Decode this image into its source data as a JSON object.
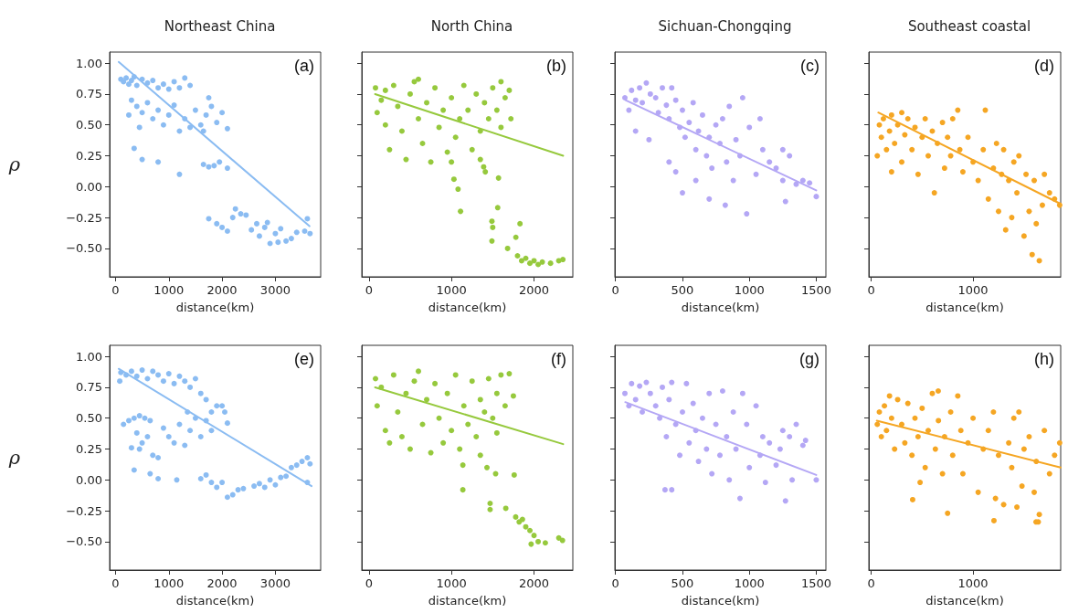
{
  "chart_data": [
    {
      "type": "scatter",
      "title": "Northeast China",
      "xlabel": "distance(km)",
      "ylabel": "ρ",
      "annotations": [
        "(a)"
      ],
      "marker": "circle",
      "xlim": [
        -110,
        3850
      ],
      "xticks": [
        0,
        1000,
        2000,
        3000
      ],
      "ylim": [
        -0.73,
        1.09
      ],
      "yticks": [
        {
          "value": -0.5,
          "label": "−0.50"
        },
        {
          "value": -0.25,
          "label": "−0.25"
        },
        {
          "value": 0,
          "label": "0.00"
        },
        {
          "value": 0.25,
          "label": "0.25"
        },
        {
          "value": 0.5,
          "label": "0.50"
        },
        {
          "value": 0.75,
          "label": "0.75"
        },
        {
          "value": 1,
          "label": "1.00"
        }
      ],
      "series": [
        {
          "color": "#8bbcf2",
          "x": [
            100,
            150,
            200,
            250,
            300,
            350,
            400,
            500,
            600,
            700,
            800,
            900,
            1000,
            1100,
            1200,
            1300,
            1400,
            250,
            300,
            400,
            450,
            500,
            600,
            700,
            800,
            900,
            1000,
            1100,
            1200,
            1300,
            1400,
            1500,
            1600,
            1650,
            1700,
            1800,
            1900,
            2000,
            2100,
            1750,
            350,
            500,
            800,
            1200,
            1650,
            1750,
            1850,
            1950,
            2100,
            1750,
            1900,
            2000,
            2100,
            2200,
            2250,
            2350,
            2450,
            2550,
            2650,
            2700,
            2800,
            2850,
            2900,
            3000,
            3050,
            3100,
            3200,
            3300,
            3400,
            3550,
            3600,
            3650
          ],
          "values": [
            0.87,
            0.85,
            0.88,
            0.83,
            0.86,
            0.89,
            0.82,
            0.87,
            0.84,
            0.86,
            0.8,
            0.83,
            0.79,
            0.85,
            0.8,
            0.88,
            0.82,
            0.58,
            0.7,
            0.65,
            0.48,
            0.6,
            0.68,
            0.55,
            0.62,
            0.5,
            0.58,
            0.66,
            0.45,
            0.55,
            0.48,
            0.62,
            0.5,
            0.45,
            0.58,
            0.65,
            0.52,
            0.6,
            0.47,
            0.72,
            0.31,
            0.22,
            0.2,
            0.1,
            0.18,
            0.16,
            0.17,
            0.2,
            0.15,
            -0.26,
            -0.3,
            -0.33,
            -0.36,
            -0.25,
            -0.18,
            -0.22,
            -0.23,
            -0.35,
            -0.3,
            -0.4,
            -0.33,
            -0.29,
            -0.46,
            -0.38,
            -0.45,
            -0.34,
            -0.44,
            -0.42,
            -0.37,
            -0.36,
            -0.26,
            -0.38
          ]
        },
        {
          "type": "line",
          "marker": "none",
          "color": "#8bbcf2",
          "x": [
            60,
            3640
          ],
          "values": [
            1.01,
            -0.32
          ]
        }
      ]
    },
    {
      "type": "scatter",
      "title": "North China",
      "xlabel": "distance(km)",
      "annotations": [
        "(b)"
      ],
      "marker": "circle",
      "tick_labels": "x",
      "xlim": [
        -86,
        2470
      ],
      "xticks": [
        0,
        1000,
        2000
      ],
      "ylim": [
        -0.73,
        1.09
      ],
      "yticks": [
        -0.5,
        -0.25,
        0,
        0.25,
        0.5,
        0.75,
        1
      ],
      "series": [
        {
          "color": "#96c93d",
          "x": [
            80,
            100,
            150,
            200,
            250,
            300,
            350,
            400,
            450,
            500,
            550,
            600,
            650,
            700,
            750,
            800,
            850,
            900,
            950,
            1000,
            1050,
            1100,
            1150,
            1200,
            1250,
            1300,
            1350,
            1400,
            1450,
            1500,
            1550,
            1600,
            1650,
            1700,
            1720,
            1600,
            1350,
            200,
            600,
            1000,
            1030,
            1080,
            1110,
            1390,
            1410,
            1570,
            1560,
            1490,
            1500,
            1490,
            1680,
            1830,
            1780,
            1800,
            1850,
            1900,
            1950,
            2000,
            2050,
            2100,
            2200,
            2300,
            2350
          ],
          "values": [
            0.8,
            0.6,
            0.7,
            0.5,
            0.3,
            0.82,
            0.65,
            0.45,
            0.22,
            0.75,
            0.85,
            0.55,
            0.35,
            0.68,
            0.2,
            0.8,
            0.48,
            0.62,
            0.28,
            0.72,
            0.4,
            0.55,
            0.82,
            0.62,
            0.3,
            0.75,
            0.45,
            0.68,
            0.55,
            0.8,
            0.62,
            0.85,
            0.72,
            0.78,
            0.55,
            0.48,
            0.22,
            0.78,
            0.87,
            0.2,
            0.06,
            -0.02,
            -0.2,
            0.16,
            0.12,
            0.07,
            -0.17,
            -0.28,
            -0.33,
            -0.44,
            -0.5,
            -0.3,
            -0.41,
            -0.56,
            -0.6,
            -0.58,
            -0.62,
            -0.6,
            -0.63,
            -0.61,
            -0.62,
            -0.6,
            -0.59
          ]
        },
        {
          "type": "line",
          "marker": "none",
          "color": "#96c93d",
          "x": [
            75,
            2353
          ],
          "values": [
            0.75,
            0.25
          ]
        }
      ]
    },
    {
      "type": "scatter",
      "title": "Sichuan-Chongqing",
      "xlabel": "distance(km)",
      "annotations": [
        "(c)"
      ],
      "marker": "circle",
      "tick_labels": "x",
      "xlim": [
        -5,
        1572
      ],
      "xticks": [
        0,
        500,
        1000,
        1500
      ],
      "ylim": [
        -0.73,
        1.09
      ],
      "yticks": [
        -0.5,
        -0.25,
        0,
        0.25,
        0.5,
        0.75,
        1
      ],
      "series": [
        {
          "color": "#b4a7f5",
          "x": [
            70,
            100,
            120,
            150,
            180,
            200,
            230,
            260,
            300,
            320,
            350,
            380,
            400,
            420,
            450,
            480,
            500,
            520,
            550,
            580,
            600,
            620,
            650,
            680,
            700,
            720,
            750,
            780,
            800,
            830,
            850,
            880,
            900,
            930,
            950,
            980,
            1000,
            1050,
            1080,
            1100,
            1150,
            1200,
            1250,
            1270,
            1250,
            1300,
            1350,
            1400,
            1450,
            1500,
            150,
            250,
            400,
            450,
            700,
            820,
            500,
            600
          ],
          "values": [
            0.72,
            0.62,
            0.78,
            0.7,
            0.8,
            0.68,
            0.84,
            0.75,
            0.72,
            0.6,
            0.8,
            0.66,
            0.55,
            0.8,
            0.7,
            0.48,
            0.62,
            0.4,
            0.52,
            0.68,
            0.3,
            0.45,
            0.58,
            0.25,
            0.4,
            0.15,
            0.5,
            0.35,
            0.55,
            0.2,
            0.65,
            0.05,
            0.38,
            0.25,
            0.72,
            -0.22,
            0.48,
            0.1,
            0.55,
            0.3,
            0.2,
            0.15,
            0.05,
            -0.12,
            0.3,
            0.25,
            0.02,
            0.05,
            0.03,
            -0.08,
            0.45,
            0.38,
            0.2,
            0.12,
            -0.1,
            -0.15,
            -0.05,
            0.05
          ]
        },
        {
          "type": "line",
          "marker": "none",
          "color": "#b4a7f5",
          "x": [
            75,
            1500
          ],
          "values": [
            0.7,
            -0.03
          ]
        }
      ]
    },
    {
      "type": "scatter",
      "title": "Southeast coastal",
      "xlabel": "distance(km)",
      "annotations": [
        "(d)"
      ],
      "marker": "circle",
      "tick_labels": "x",
      "xlim": [
        -23,
        1860
      ],
      "xticks": [
        0,
        1000
      ],
      "ylim": [
        -0.73,
        1.09
      ],
      "yticks": [
        -0.5,
        -0.25,
        0,
        0.25,
        0.5,
        0.75,
        1
      ],
      "series": [
        {
          "color": "#f5a623",
          "x": [
            60,
            80,
            100,
            120,
            150,
            180,
            200,
            230,
            260,
            300,
            330,
            360,
            400,
            430,
            460,
            500,
            530,
            560,
            600,
            620,
            650,
            700,
            720,
            750,
            780,
            800,
            850,
            870,
            900,
            950,
            1000,
            1050,
            1100,
            1120,
            1150,
            1200,
            1230,
            1250,
            1280,
            1300,
            1320,
            1350,
            1380,
            1400,
            1430,
            1450,
            1500,
            1520,
            1550,
            1580,
            1600,
            1620,
            1650,
            1680,
            1700,
            1750,
            1800,
            1850,
            300,
            200
          ],
          "values": [
            0.25,
            0.5,
            0.4,
            0.55,
            0.3,
            0.45,
            0.58,
            0.35,
            0.5,
            0.2,
            0.42,
            0.55,
            0.3,
            0.48,
            0.1,
            0.4,
            0.55,
            0.25,
            0.45,
            -0.05,
            0.35,
            0.52,
            0.15,
            0.4,
            0.25,
            0.55,
            0.62,
            0.3,
            0.12,
            0.4,
            0.2,
            0.05,
            0.3,
            0.62,
            -0.1,
            0.15,
            0.35,
            -0.2,
            0.1,
            0.3,
            -0.35,
            0.05,
            -0.25,
            0.2,
            -0.05,
            0.25,
            -0.4,
            0.1,
            -0.2,
            -0.55,
            0.05,
            -0.3,
            -0.6,
            -0.15,
            0.1,
            -0.05,
            -0.1,
            -0.15,
            0.6,
            0.12
          ]
        },
        {
          "type": "line",
          "marker": "none",
          "color": "#f5a623",
          "x": [
            70,
            1860
          ],
          "values": [
            0.6,
            -0.14
          ]
        }
      ]
    },
    {
      "type": "scatter",
      "xlabel": "distance(km)",
      "ylabel": "ρ",
      "annotations": [
        "(e)"
      ],
      "marker": "circle",
      "xlim": [
        -110,
        3850
      ],
      "xticks": [
        0,
        1000,
        2000,
        3000
      ],
      "ylim": [
        -0.73,
        1.09
      ],
      "yticks": [
        {
          "value": -0.5,
          "label": "−0.50"
        },
        {
          "value": -0.25,
          "label": "−0.25"
        },
        {
          "value": 0,
          "label": "0.00"
        },
        {
          "value": 0.25,
          "label": "0.25"
        },
        {
          "value": 0.5,
          "label": "0.50"
        },
        {
          "value": 0.75,
          "label": "0.75"
        },
        {
          "value": 1,
          "label": "1.00"
        }
      ],
      "series": [
        {
          "color": "#8bbcf2",
          "x": [
            80,
            100,
            200,
            300,
            400,
            500,
            600,
            700,
            800,
            900,
            1000,
            1100,
            1200,
            1300,
            1400,
            1500,
            1600,
            1700,
            1800,
            1900,
            2000,
            2050,
            2100,
            150,
            250,
            350,
            450,
            550,
            650,
            400,
            500,
            600,
            700,
            800,
            300,
            450,
            900,
            1000,
            1100,
            1200,
            1300,
            1400,
            1500,
            1600,
            1700,
            1800,
            1350,
            350,
            650,
            800,
            1150,
            1600,
            1700,
            1800,
            1900,
            2000,
            2100,
            2200,
            2300,
            2400,
            2600,
            2700,
            2800,
            2900,
            3000,
            3100,
            3200,
            3300,
            3400,
            3500,
            3600,
            3650,
            3600
          ],
          "values": [
            0.8,
            0.87,
            0.85,
            0.88,
            0.84,
            0.89,
            0.82,
            0.88,
            0.85,
            0.8,
            0.86,
            0.78,
            0.84,
            0.8,
            0.75,
            0.82,
            0.7,
            0.65,
            0.55,
            0.6,
            0.6,
            0.55,
            0.46,
            0.45,
            0.48,
            0.5,
            0.52,
            0.5,
            0.48,
            0.38,
            0.3,
            0.35,
            0.2,
            0.18,
            0.26,
            0.25,
            0.42,
            0.35,
            0.3,
            0.45,
            0.28,
            0.4,
            0.5,
            0.35,
            0.48,
            0.4,
            0.55,
            0.08,
            0.05,
            0.01,
            0.0,
            0.01,
            0.04,
            -0.02,
            -0.06,
            -0.02,
            -0.14,
            -0.12,
            -0.08,
            -0.07,
            -0.05,
            -0.03,
            -0.06,
            0.0,
            -0.04,
            0.02,
            0.03,
            0.1,
            0.12,
            0.15,
            0.18,
            0.13,
            -0.02
          ]
        },
        {
          "type": "line",
          "marker": "none",
          "color": "#8bbcf2",
          "x": [
            60,
            3680
          ],
          "values": [
            0.9,
            -0.05
          ]
        }
      ]
    },
    {
      "type": "scatter",
      "xlabel": "distance(km)",
      "annotations": [
        "(f)"
      ],
      "marker": "circle",
      "tick_labels": "x",
      "xlim": [
        -86,
        2470
      ],
      "xticks": [
        0,
        1000,
        2000
      ],
      "ylim": [
        -0.73,
        1.09
      ],
      "yticks": [
        -0.5,
        -0.25,
        0,
        0.25,
        0.5,
        0.75,
        1
      ],
      "series": [
        {
          "color": "#96c93d",
          "x": [
            80,
            100,
            150,
            200,
            250,
            300,
            350,
            400,
            450,
            500,
            550,
            600,
            650,
            700,
            750,
            800,
            850,
            900,
            950,
            1000,
            1050,
            1100,
            1150,
            1200,
            1250,
            1300,
            1350,
            1400,
            1450,
            1500,
            1550,
            1600,
            1650,
            1700,
            1750,
            1350,
            1550,
            1138,
            1138,
            1430,
            1535,
            1760,
            1468,
            1468,
            1658,
            1778,
            1820,
            1860,
            1900,
            1950,
            1965,
            2000,
            2137,
            2300,
            2345,
            2050
          ],
          "values": [
            0.82,
            0.6,
            0.75,
            0.4,
            0.3,
            0.85,
            0.55,
            0.35,
            0.7,
            0.25,
            0.8,
            0.88,
            0.45,
            0.65,
            0.22,
            0.78,
            0.5,
            0.3,
            0.7,
            0.4,
            0.85,
            0.25,
            0.6,
            0.45,
            0.8,
            0.35,
            0.65,
            0.55,
            0.82,
            0.5,
            0.7,
            0.85,
            0.6,
            0.86,
            0.68,
            0.2,
            0.38,
            0.12,
            -0.08,
            0.1,
            0.05,
            0.04,
            -0.19,
            -0.24,
            -0.23,
            -0.3,
            -0.34,
            -0.32,
            -0.38,
            -0.41,
            -0.52,
            -0.45,
            -0.51,
            -0.47,
            -0.49,
            -0.5
          ]
        },
        {
          "type": "line",
          "marker": "none",
          "color": "#96c93d",
          "x": [
            75,
            2353
          ],
          "values": [
            0.75,
            0.29
          ]
        }
      ]
    },
    {
      "type": "scatter",
      "xlabel": "distance(km)",
      "annotations": [
        "(g)"
      ],
      "marker": "circle",
      "tick_labels": "x",
      "xlim": [
        -5,
        1572
      ],
      "xticks": [
        0,
        500,
        1000,
        1500
      ],
      "ylim": [
        -0.73,
        1.09
      ],
      "yticks": [
        -0.5,
        -0.25,
        0,
        0.25,
        0.5,
        0.75,
        1
      ],
      "series": [
        {
          "color": "#b4a7f5",
          "x": [
            70,
            100,
            120,
            150,
            180,
            200,
            230,
            260,
            300,
            330,
            350,
            380,
            400,
            420,
            450,
            480,
            500,
            530,
            550,
            580,
            600,
            620,
            650,
            680,
            700,
            720,
            750,
            780,
            800,
            830,
            850,
            880,
            900,
            930,
            950,
            980,
            1000,
            1050,
            1080,
            1100,
            1120,
            1150,
            1200,
            1250,
            1270,
            1300,
            1320,
            1350,
            1400,
            1420,
            1500,
            370,
            420,
            1230
          ],
          "values": [
            0.7,
            0.6,
            0.78,
            0.65,
            0.76,
            0.55,
            0.79,
            0.7,
            0.6,
            0.5,
            0.75,
            0.35,
            0.65,
            0.79,
            0.45,
            0.2,
            0.55,
            0.78,
            0.3,
            0.62,
            0.4,
            0.15,
            0.5,
            0.25,
            0.7,
            0.05,
            0.45,
            0.2,
            0.72,
            0.35,
            0.0,
            0.55,
            0.25,
            -0.15,
            0.7,
            0.45,
            0.1,
            0.6,
            0.2,
            0.35,
            -0.02,
            0.3,
            0.12,
            0.4,
            -0.17,
            0.35,
            0.0,
            0.45,
            0.28,
            0.32,
            0.0,
            -0.08,
            -0.08,
            0.25
          ]
        },
        {
          "type": "line",
          "marker": "none",
          "color": "#b4a7f5",
          "x": [
            73,
            1500
          ],
          "values": [
            0.63,
            0.04
          ]
        }
      ]
    },
    {
      "type": "scatter",
      "xlabel": "distance(km)",
      "annotations": [
        "(h)"
      ],
      "marker": "circle",
      "tick_labels": "x",
      "xlim": [
        -23,
        1860
      ],
      "xticks": [
        0,
        1000
      ],
      "ylim": [
        -0.73,
        1.09
      ],
      "yticks": [
        -0.5,
        -0.25,
        0,
        0.25,
        0.5,
        0.75,
        1
      ],
      "series": [
        {
          "color": "#f5a623",
          "x": [
            60,
            80,
            100,
            130,
            150,
            180,
            200,
            230,
            260,
            300,
            330,
            360,
            400,
            430,
            460,
            480,
            500,
            530,
            560,
            600,
            630,
            660,
            700,
            720,
            750,
            780,
            800,
            850,
            880,
            900,
            950,
            1000,
            1050,
            1100,
            1150,
            1200,
            1220,
            1250,
            1300,
            1350,
            1380,
            1400,
            1450,
            1480,
            1500,
            1550,
            1600,
            1620,
            1650,
            1700,
            1750,
            1800,
            1850,
            1205,
            1618,
            1640,
            407,
            1430,
            658
          ],
          "values": [
            0.45,
            0.55,
            0.35,
            0.6,
            0.4,
            0.68,
            0.5,
            0.25,
            0.65,
            0.45,
            0.3,
            0.62,
            0.2,
            0.5,
            0.35,
            -0.02,
            0.58,
            0.1,
            0.4,
            0.7,
            0.25,
            0.48,
            0.05,
            0.35,
            -0.27,
            0.55,
            0.2,
            0.68,
            0.4,
            0.05,
            0.3,
            0.5,
            -0.1,
            0.25,
            0.4,
            0.55,
            -0.15,
            0.2,
            -0.2,
            0.3,
            0.1,
            0.5,
            0.55,
            -0.05,
            0.25,
            0.35,
            -0.1,
            0.15,
            -0.28,
            0.4,
            0.05,
            0.2,
            0.3,
            -0.33,
            -0.34,
            -0.34,
            -0.16,
            -0.22,
            0.72
          ]
        },
        {
          "type": "line",
          "marker": "none",
          "color": "#f5a623",
          "x": [
            55,
            1860
          ],
          "values": [
            0.48,
            0.1
          ]
        }
      ]
    }
  ]
}
